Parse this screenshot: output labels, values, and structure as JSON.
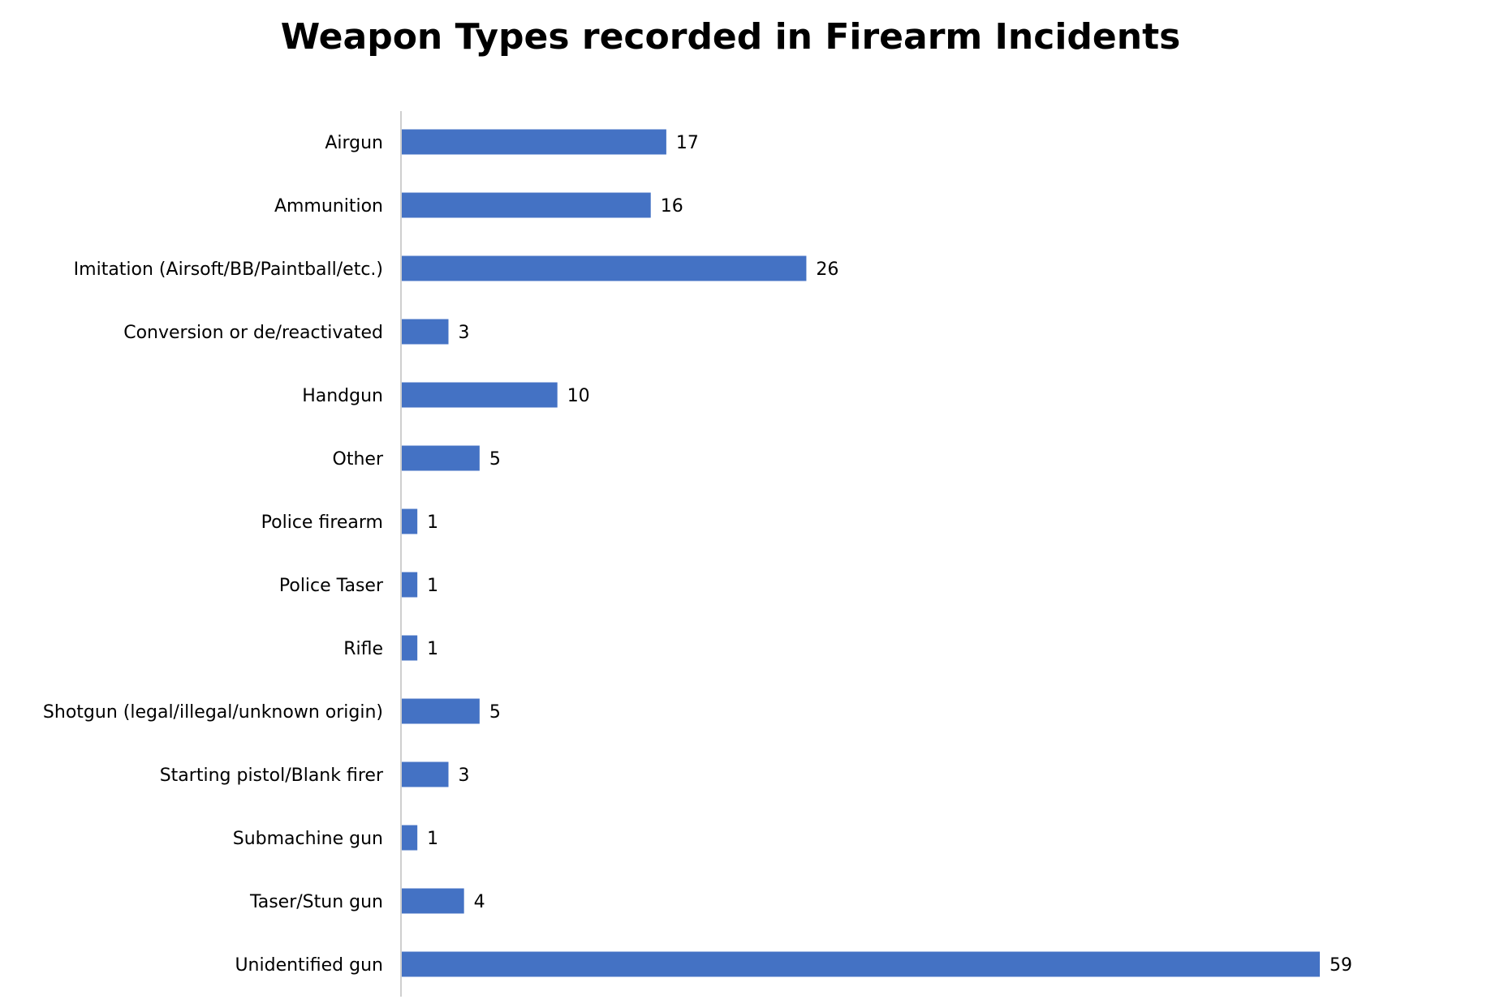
{
  "chart_data": {
    "type": "bar",
    "orientation": "horizontal",
    "title": "Weapon Types recorded in Firearm Incidents",
    "xlabel": "",
    "ylabel": "",
    "categories": [
      "Airgun",
      "Ammunition",
      "Imitation (Airsoft/BB/Paintball/etc.)",
      "Conversion or de/reactivated",
      "Handgun",
      "Other",
      "Police firearm",
      "Police Taser",
      "Rifle",
      "Shotgun (legal/illegal/unknown origin)",
      "Starting pistol/Blank firer",
      "Submachine gun",
      "Taser/Stun gun",
      "Unidentified gun"
    ],
    "values": [
      17,
      16,
      26,
      3,
      10,
      5,
      1,
      1,
      1,
      5,
      3,
      1,
      4,
      59
    ],
    "data_labels": true,
    "grid": false,
    "legend": "none",
    "bar_color": "#4472C4",
    "axis_color": "#BFBFBF"
  }
}
